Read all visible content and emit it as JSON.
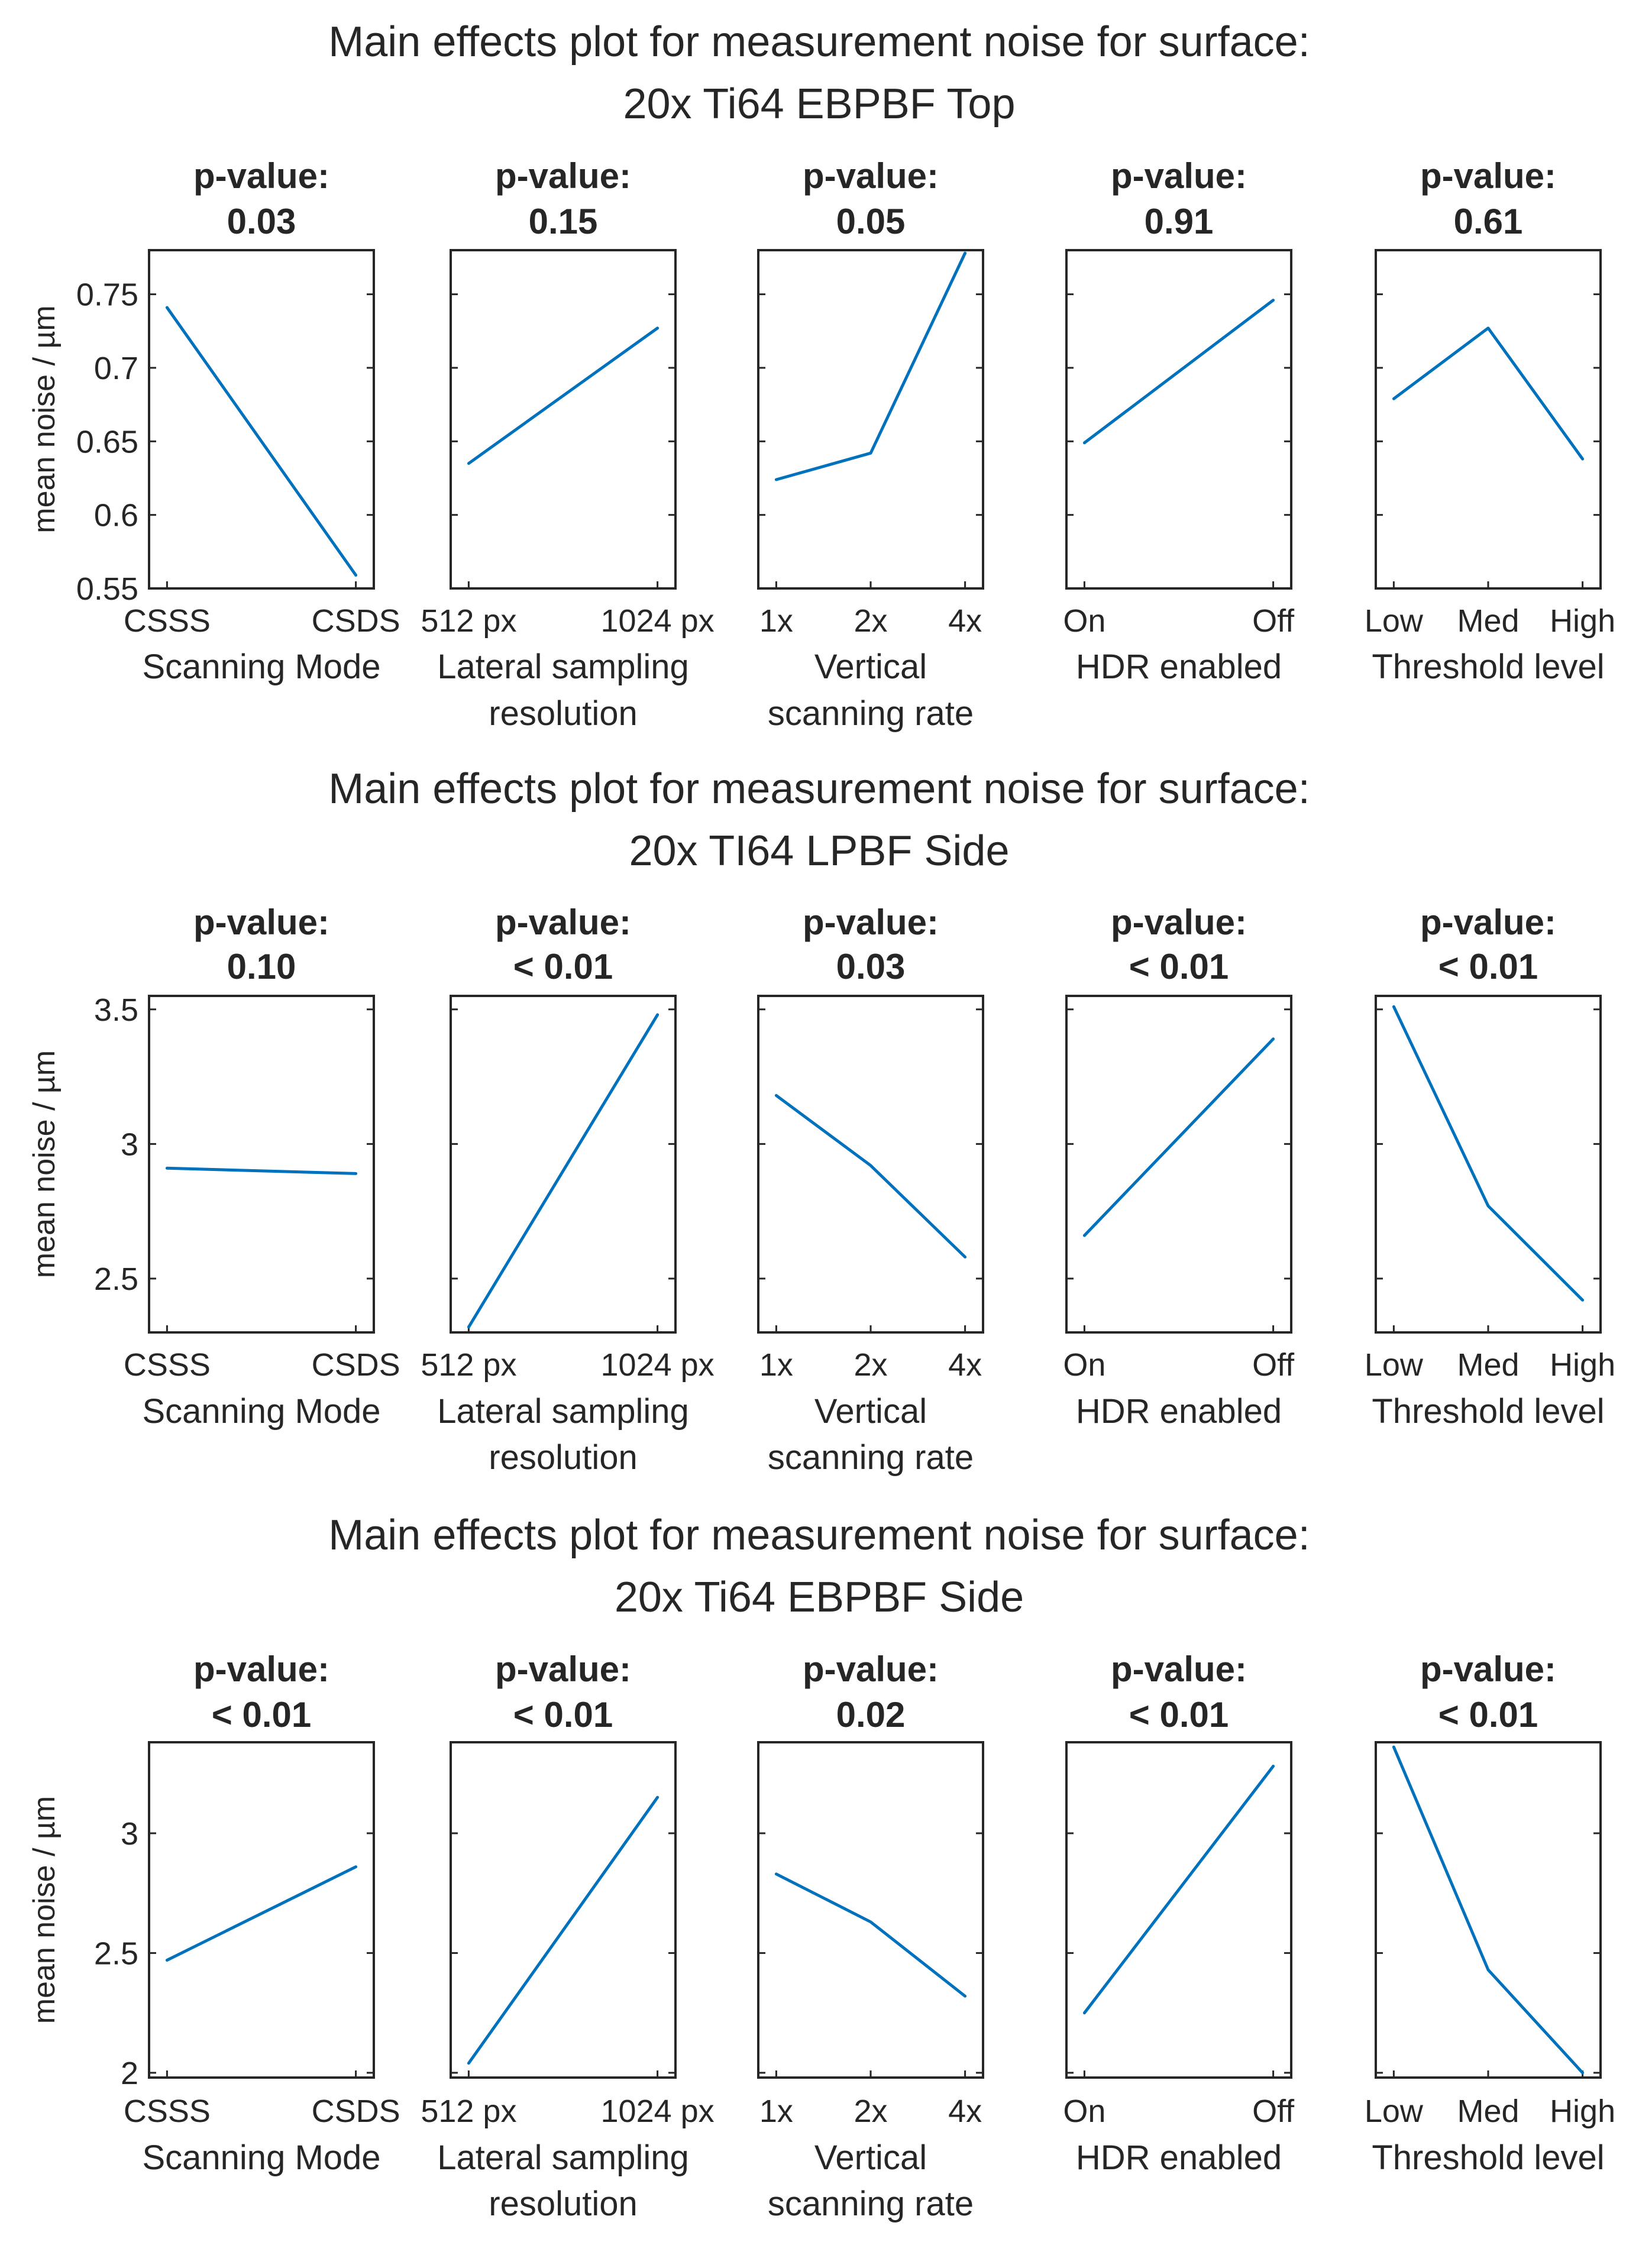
{
  "chart_data": [
    {
      "type": "line",
      "title": [
        "Main effects plot for measurement noise for surface:",
        "20x Ti64 EBPBF Top"
      ],
      "ylabel": "mean noise / µm",
      "ylim": [
        0.55,
        0.78
      ],
      "yticks": [
        0.55,
        0.6,
        0.65,
        0.7,
        0.75
      ],
      "ytick_labels": [
        "0.55",
        "0.6",
        "0.65",
        "0.7",
        "0.75"
      ],
      "series_color": "#0072BD",
      "panels": [
        {
          "p_label": "p-value:",
          "p_value": "0.03",
          "factor": [
            "Scanning Mode"
          ],
          "categories": [
            "CSSS",
            "CSDS"
          ],
          "values": [
            0.741,
            0.559
          ]
        },
        {
          "p_label": "p-value:",
          "p_value": "0.15",
          "factor": [
            "Lateral sampling",
            "resolution"
          ],
          "categories": [
            "512 px",
            "1024 px"
          ],
          "values": [
            0.635,
            0.727
          ]
        },
        {
          "p_label": "p-value:",
          "p_value": "0.05",
          "factor": [
            "Vertical",
            "scanning rate"
          ],
          "categories": [
            "1x",
            "2x",
            "4x"
          ],
          "values": [
            0.624,
            0.642,
            0.778
          ]
        },
        {
          "p_label": "p-value:",
          "p_value": "0.91",
          "factor": [
            "HDR enabled"
          ],
          "categories": [
            "On",
            "Off"
          ],
          "values": [
            0.649,
            0.746
          ]
        },
        {
          "p_label": "p-value:",
          "p_value": "0.61",
          "factor": [
            "Threshold level"
          ],
          "categories": [
            "Low",
            "Med",
            "High"
          ],
          "values": [
            0.679,
            0.727,
            0.638
          ]
        }
      ]
    },
    {
      "type": "line",
      "title": [
        "Main effects plot for measurement noise for surface:",
        "20x TI64 LPBF Side"
      ],
      "ylabel": "mean noise / µm",
      "ylim": [
        2.3,
        3.55
      ],
      "yticks": [
        2.5,
        3,
        3.5
      ],
      "ytick_labels": [
        "2.5",
        "3",
        "3.5"
      ],
      "series_color": "#0072BD",
      "panels": [
        {
          "p_label": "p-value:",
          "p_value": "0.10",
          "factor": [
            "Scanning Mode"
          ],
          "categories": [
            "CSSS",
            "CSDS"
          ],
          "values": [
            2.91,
            2.89
          ]
        },
        {
          "p_label": "p-value:",
          "p_value": "< 0.01",
          "factor": [
            "Lateral sampling",
            "resolution"
          ],
          "categories": [
            "512 px",
            "1024 px"
          ],
          "values": [
            2.32,
            3.48
          ]
        },
        {
          "p_label": "p-value:",
          "p_value": "0.03",
          "factor": [
            "Vertical",
            "scanning rate"
          ],
          "categories": [
            "1x",
            "2x",
            "4x"
          ],
          "values": [
            3.18,
            2.92,
            2.58
          ]
        },
        {
          "p_label": "p-value:",
          "p_value": "< 0.01",
          "factor": [
            "HDR enabled"
          ],
          "categories": [
            "On",
            "Off"
          ],
          "values": [
            2.66,
            3.39
          ]
        },
        {
          "p_label": "p-value:",
          "p_value": "< 0.01",
          "factor": [
            "Threshold level"
          ],
          "categories": [
            "Low",
            "Med",
            "High"
          ],
          "values": [
            3.51,
            2.77,
            2.42
          ]
        }
      ]
    },
    {
      "type": "line",
      "title": [
        "Main effects plot for measurement noise for surface:",
        "20x Ti64 EBPBF Side"
      ],
      "ylabel": "mean noise / µm",
      "ylim": [
        1.98,
        3.38
      ],
      "yticks": [
        2,
        2.5,
        3
      ],
      "ytick_labels": [
        "2",
        "2.5",
        "3"
      ],
      "series_color": "#0072BD",
      "panels": [
        {
          "p_label": "p-value:",
          "p_value": "< 0.01",
          "factor": [
            "Scanning Mode"
          ],
          "categories": [
            "CSSS",
            "CSDS"
          ],
          "values": [
            2.47,
            2.86
          ]
        },
        {
          "p_label": "p-value:",
          "p_value": "< 0.01",
          "factor": [
            "Lateral sampling",
            "resolution"
          ],
          "categories": [
            "512 px",
            "1024 px"
          ],
          "values": [
            2.04,
            3.15
          ]
        },
        {
          "p_label": "p-value:",
          "p_value": "0.02",
          "factor": [
            "Vertical",
            "scanning rate"
          ],
          "categories": [
            "1x",
            "2x",
            "4x"
          ],
          "values": [
            2.83,
            2.63,
            2.32
          ]
        },
        {
          "p_label": "p-value:",
          "p_value": "< 0.01",
          "factor": [
            "HDR enabled"
          ],
          "categories": [
            "On",
            "Off"
          ],
          "values": [
            2.25,
            3.28
          ]
        },
        {
          "p_label": "p-value:",
          "p_value": "< 0.01",
          "factor": [
            "Threshold level"
          ],
          "categories": [
            "Low",
            "Med",
            "High"
          ],
          "values": [
            3.36,
            2.43,
            2.0
          ]
        }
      ]
    }
  ]
}
